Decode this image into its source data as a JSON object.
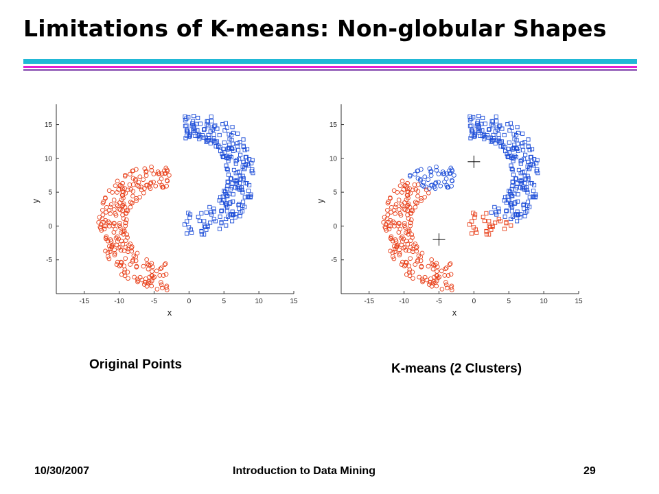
{
  "slide": {
    "title": "Limitations of K-means: Non-globular Shapes",
    "footer_date": "10/30/2007",
    "footer_center": "Introduction to Data Mining",
    "footer_page": "29"
  },
  "colors": {
    "rule_cyan": "#21b8d6",
    "rule_magenta": "#e21fd4",
    "rule_purple": "#7f3faa",
    "cluster_blue": "#1f4fd8",
    "cluster_red": "#e8401a"
  },
  "chart_data": [
    {
      "type": "scatter",
      "title": "Original Points",
      "xlabel": "x",
      "ylabel": "y",
      "xlim": [
        -19,
        15
      ],
      "ylim": [
        -10,
        18
      ],
      "xticks": [
        -15,
        -10,
        -5,
        0,
        5,
        10,
        15
      ],
      "yticks": [
        -5,
        0,
        5,
        10,
        15
      ],
      "series": [
        {
          "color": "#1f4fd8",
          "marker": "square",
          "shape": "upper crescent",
          "count": 260
        },
        {
          "color": "#e8401a",
          "marker": "circle",
          "shape": "lower crescent",
          "count": 260
        }
      ],
      "centroids": []
    },
    {
      "type": "scatter",
      "title": "K-means (2 Clusters)",
      "xlabel": "x",
      "ylabel": "y",
      "xlim": [
        -19,
        15
      ],
      "ylim": [
        -10,
        18
      ],
      "xticks": [
        -15,
        -10,
        -5,
        0,
        5,
        10,
        15
      ],
      "yticks": [
        -5,
        0,
        5,
        10,
        15
      ],
      "series": [
        {
          "color": "#1f4fd8",
          "marker": "mixed",
          "shape": "upper region",
          "count": 260
        },
        {
          "color": "#e8401a",
          "marker": "mixed",
          "shape": "lower region",
          "count": 260
        }
      ],
      "centroids": [
        {
          "x": 0,
          "y": 9.5
        },
        {
          "x": -5,
          "y": -2
        }
      ]
    }
  ]
}
